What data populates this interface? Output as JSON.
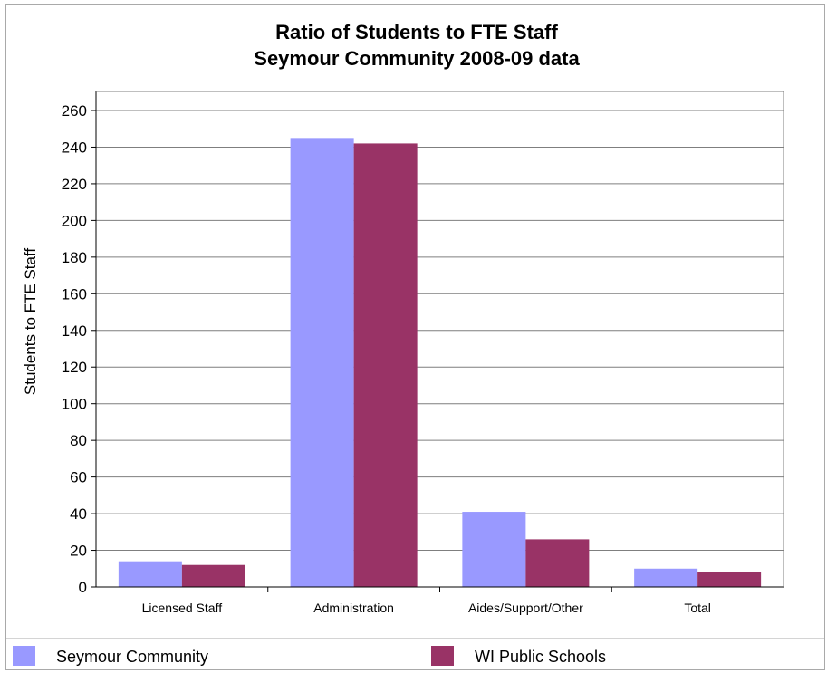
{
  "chart_data": {
    "type": "bar",
    "title": "Ratio of Students to FTE Staff",
    "subtitle": "Seymour Community 2008-09 data",
    "xlabel": "",
    "ylabel": "Students to FTE Staff",
    "ylim": [
      0,
      260
    ],
    "yticks": [
      0,
      20,
      40,
      60,
      80,
      100,
      120,
      140,
      160,
      180,
      200,
      220,
      240,
      260
    ],
    "grid": true,
    "legend_position": "bottom",
    "categories": [
      "Licensed Staff",
      "Administration",
      "Aides/Support/Other",
      "Total"
    ],
    "series": [
      {
        "name": "Seymour Community",
        "color": "#9999ff",
        "values": [
          14,
          245,
          41,
          10
        ]
      },
      {
        "name": "WI Public Schools",
        "color": "#993366",
        "values": [
          12,
          242,
          26,
          8
        ]
      }
    ]
  }
}
